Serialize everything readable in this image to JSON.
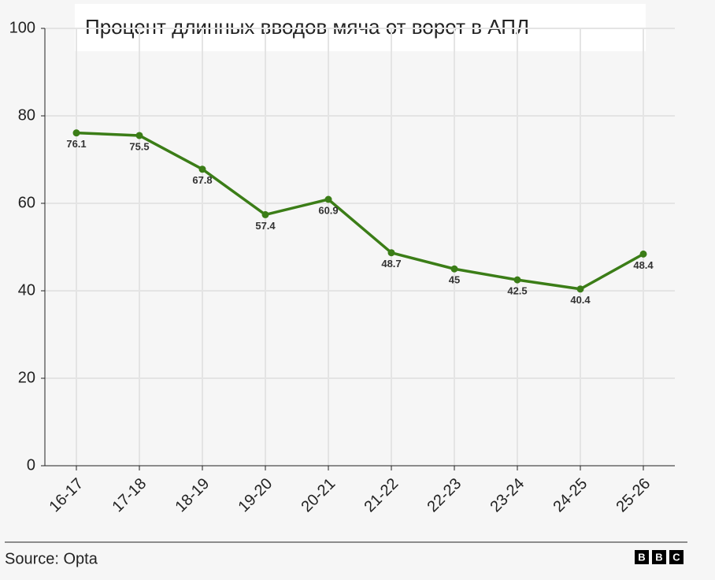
{
  "chart_data": {
    "type": "line",
    "title": "Процент длинных вводов мяча от ворот в АПЛ",
    "categories": [
      "16-17",
      "17-18",
      "18-19",
      "19-20",
      "20-21",
      "21-22",
      "22-23",
      "23-24",
      "24-25",
      "25-26"
    ],
    "series": [
      {
        "color": "#3b7d17",
        "values": [
          76.1,
          75.5,
          67.8,
          57.4,
          60.9,
          48.7,
          45,
          42.5,
          40.4,
          48.4
        ]
      }
    ],
    "ylim": [
      0,
      100
    ],
    "yticks": [
      0,
      20,
      40,
      60,
      80,
      100
    ],
    "grid": true
  },
  "footer": {
    "source": "Source: Opta",
    "logo": [
      "B",
      "B",
      "C"
    ]
  }
}
